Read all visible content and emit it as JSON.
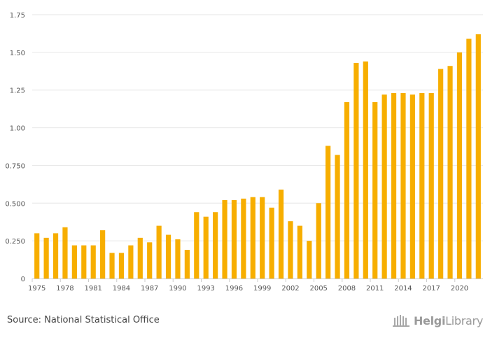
{
  "chart_data": {
    "type": "bar",
    "title": "",
    "xlabel": "",
    "ylabel": "",
    "ylim": [
      0,
      1.75
    ],
    "yticks": [
      0,
      0.25,
      0.5,
      0.75,
      1.0,
      1.25,
      1.5,
      1.75
    ],
    "ytick_labels": [
      "0",
      "0.250",
      "0.500",
      "0.750",
      "1.00",
      "1.25",
      "1.50",
      "1.75"
    ],
    "grid": true,
    "legend": "none",
    "bar_color": "#F7AE00",
    "categories": [
      1975,
      1976,
      1977,
      1978,
      1979,
      1980,
      1981,
      1982,
      1983,
      1984,
      1985,
      1986,
      1987,
      1988,
      1989,
      1990,
      1991,
      1992,
      1993,
      1994,
      1995,
      1996,
      1997,
      1998,
      1999,
      2000,
      2001,
      2002,
      2003,
      2004,
      2005,
      2006,
      2007,
      2008,
      2009,
      2010,
      2011,
      2012,
      2013,
      2014,
      2015,
      2016,
      2017,
      2018,
      2019,
      2020,
      2021,
      2022
    ],
    "xtick_labels": [
      "1975",
      "1978",
      "1981",
      "1984",
      "1987",
      "1990",
      "1993",
      "1996",
      "1999",
      "2002",
      "2005",
      "2008",
      "2011",
      "2014",
      "2017",
      "2020"
    ],
    "values": [
      0.3,
      0.27,
      0.3,
      0.34,
      0.22,
      0.22,
      0.22,
      0.32,
      0.17,
      0.17,
      0.22,
      0.27,
      0.24,
      0.35,
      0.29,
      0.26,
      0.19,
      0.44,
      0.41,
      0.44,
      0.52,
      0.52,
      0.53,
      0.54,
      0.54,
      0.47,
      0.59,
      0.38,
      0.35,
      0.25,
      0.5,
      0.88,
      0.82,
      1.17,
      1.43,
      1.44,
      1.17,
      1.22,
      1.23,
      1.23,
      1.22,
      1.23,
      1.23,
      1.39,
      1.41,
      1.5,
      1.59,
      1.62
    ]
  },
  "footer": {
    "source": "Source: National Statistical Office",
    "brand_bold": "Helgi",
    "brand_rest": "Library"
  },
  "colors": {
    "grid": "#e6e6e6",
    "axis": "#cccccc",
    "tick_text": "#555555",
    "brand": "#9a9a9a"
  }
}
